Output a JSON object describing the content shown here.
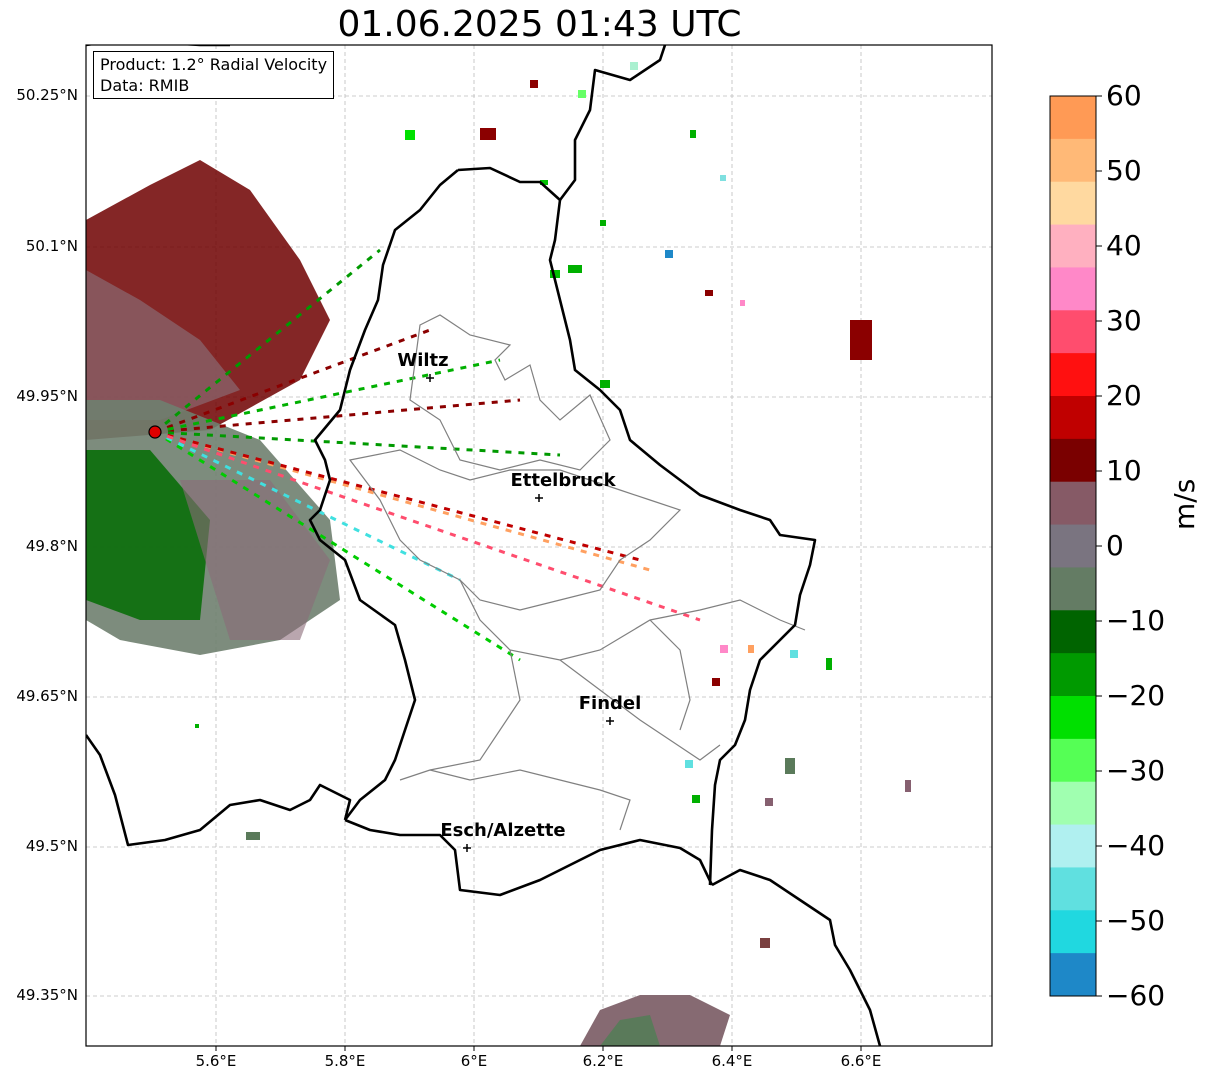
{
  "title": "01.06.2025 01:43 UTC",
  "info": {
    "product": "Product: 1.2° Radial Velocity",
    "data": "Data: RMIB"
  },
  "lat_labels": [
    "50.25°N",
    "50.1°N",
    "49.95°N",
    "49.8°N",
    "49.65°N",
    "49.5°N",
    "49.35°N"
  ],
  "lon_labels": [
    "5.6°E",
    "5.8°E",
    "6°E",
    "6.2°E",
    "6.4°E",
    "6.6°E"
  ],
  "cities": [
    {
      "name": "Wiltz"
    },
    {
      "name": "Ettelbruck"
    },
    {
      "name": "Findel"
    },
    {
      "name": "Esch/Alzette"
    }
  ],
  "colorbar": {
    "label": "m/s",
    "ticks": [
      "60",
      "50",
      "40",
      "30",
      "20",
      "10",
      "0",
      "−10",
      "−20",
      "−30",
      "−40",
      "−50",
      "−60"
    ],
    "colors": [
      "#ff9a55",
      "#ffb977",
      "#ffd9a0",
      "#ffb0c0",
      "#ff88c8",
      "#ff4d6e",
      "#ff1010",
      "#c00000",
      "#7a0000",
      "#865a66",
      "#7a7480",
      "#647c64",
      "#006400",
      "#009a00",
      "#00e000",
      "#55ff55",
      "#a0ffb0",
      "#b0f0f0",
      "#60e0e0",
      "#20d8e0",
      "#1e88c8"
    ]
  },
  "radar_site_color": "#e00000"
}
